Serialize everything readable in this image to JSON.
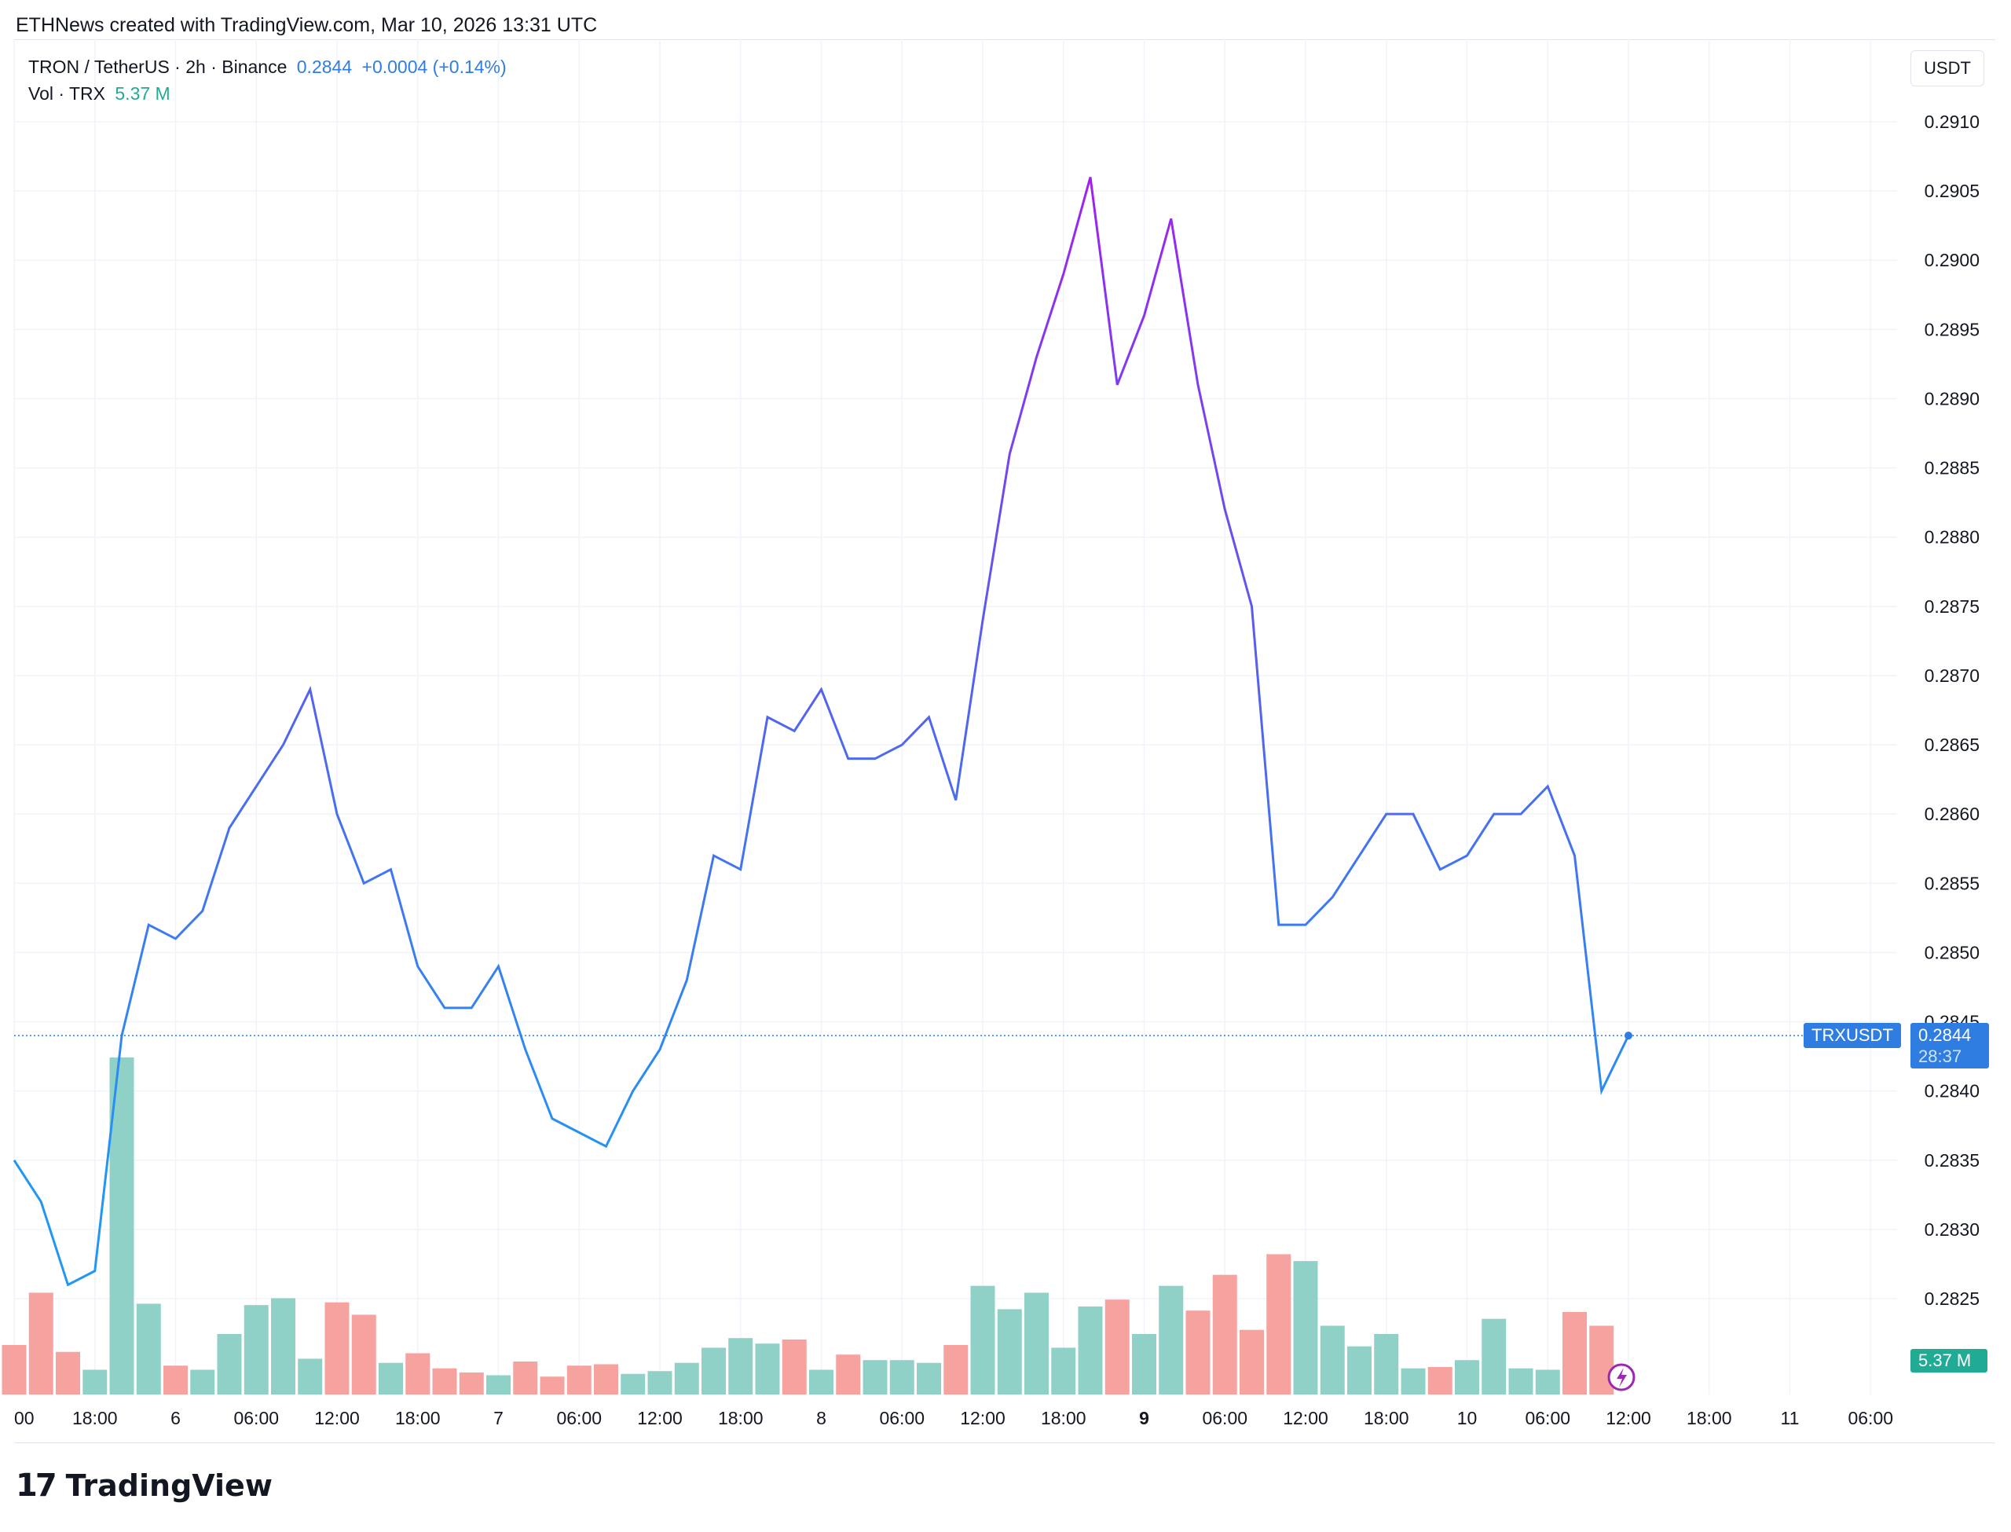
{
  "attribution": "ETHNews created with TradingView.com, Mar 10, 2026 13:31 UTC",
  "legend": {
    "symbol": "TRON / TetherUS · 2h · Binance",
    "last": "0.2844",
    "change": "+0.0004 (+0.14%)",
    "vol_label": "Vol · TRX",
    "vol_value": "5.37 M"
  },
  "currency_button": "USDT",
  "price_tag": {
    "symbol": "TRXUSDT",
    "price": "0.2844",
    "countdown": "28:37"
  },
  "volume_tag": "5.37 M",
  "brand": {
    "mark": "17",
    "name": "TradingView"
  },
  "colors": {
    "line_low": "#2196f3",
    "line_mid": "#5b5bef",
    "line_high": "#a020f0",
    "vol_up": "#8fd1c7",
    "vol_down": "#f6a3a0",
    "accent": "#2f7de1",
    "vol_tag": "#22ab94"
  },
  "chart_data": {
    "type": "line",
    "y_axis": {
      "ticks": [
        "0.2910",
        "0.2905",
        "0.2900",
        "0.2895",
        "0.2890",
        "0.2885",
        "0.2880",
        "0.2875",
        "0.2870",
        "0.2865",
        "0.2860",
        "0.2855",
        "0.2850",
        "0.2845",
        "0.2840",
        "0.2835",
        "0.2830",
        "0.2825"
      ],
      "min": 0.2822,
      "max": 0.2914
    },
    "x_axis": {
      "ticks": [
        "00",
        "18:00",
        "6",
        "06:00",
        "12:00",
        "18:00",
        "7",
        "06:00",
        "12:00",
        "18:00",
        "8",
        "06:00",
        "12:00",
        "18:00",
        "9",
        "06:00",
        "12:00",
        "18:00",
        "10",
        "06:00",
        "12:00",
        "18:00",
        "11",
        "06:00"
      ],
      "bold": [
        "9"
      ]
    },
    "series": [
      {
        "values": [
          0.2835,
          0.2832,
          0.2826,
          0.2827,
          0.2844,
          0.2852,
          0.2851,
          0.2853,
          0.2859,
          0.2862,
          0.2865,
          0.2869,
          0.286,
          0.2855,
          0.2856,
          0.2849,
          0.2846,
          0.2846,
          0.2849,
          0.2843,
          0.2838,
          0.2837,
          0.2836,
          0.284,
          0.2843,
          0.2848,
          0.2857,
          0.2856,
          0.2867,
          0.2866,
          0.2869,
          0.2864,
          0.2864,
          0.2865,
          0.2867,
          0.2861,
          0.2874,
          0.2886,
          0.2893,
          0.2899,
          0.2906,
          0.2891,
          0.2896,
          0.2903,
          0.2891,
          0.2882,
          0.2875,
          0.2852,
          0.2852,
          0.2854,
          0.2857,
          0.286,
          0.286,
          0.2856,
          0.2857,
          0.286,
          0.286,
          0.2862,
          0.2857,
          0.284,
          0.2844
        ]
      }
    ],
    "volume": [
      {
        "v": 0.36,
        "up": false
      },
      {
        "v": 0.74,
        "up": false
      },
      {
        "v": 0.31,
        "up": false
      },
      {
        "v": 0.18,
        "up": true
      },
      {
        "v": 2.45,
        "up": true
      },
      {
        "v": 0.66,
        "up": true
      },
      {
        "v": 0.21,
        "up": false
      },
      {
        "v": 0.18,
        "up": true
      },
      {
        "v": 0.44,
        "up": true
      },
      {
        "v": 0.65,
        "up": true
      },
      {
        "v": 0.7,
        "up": true
      },
      {
        "v": 0.26,
        "up": true
      },
      {
        "v": 0.67,
        "up": false
      },
      {
        "v": 0.58,
        "up": false
      },
      {
        "v": 0.23,
        "up": true
      },
      {
        "v": 0.3,
        "up": false
      },
      {
        "v": 0.19,
        "up": false
      },
      {
        "v": 0.16,
        "up": false
      },
      {
        "v": 0.14,
        "up": true
      },
      {
        "v": 0.24,
        "up": false
      },
      {
        "v": 0.13,
        "up": false
      },
      {
        "v": 0.21,
        "up": false
      },
      {
        "v": 0.22,
        "up": false
      },
      {
        "v": 0.15,
        "up": true
      },
      {
        "v": 0.17,
        "up": true
      },
      {
        "v": 0.23,
        "up": true
      },
      {
        "v": 0.34,
        "up": true
      },
      {
        "v": 0.41,
        "up": true
      },
      {
        "v": 0.37,
        "up": true
      },
      {
        "v": 0.4,
        "up": false
      },
      {
        "v": 0.18,
        "up": true
      },
      {
        "v": 0.29,
        "up": false
      },
      {
        "v": 0.25,
        "up": true
      },
      {
        "v": 0.25,
        "up": true
      },
      {
        "v": 0.23,
        "up": true
      },
      {
        "v": 0.36,
        "up": false
      },
      {
        "v": 0.79,
        "up": true
      },
      {
        "v": 0.62,
        "up": true
      },
      {
        "v": 0.74,
        "up": true
      },
      {
        "v": 0.34,
        "up": true
      },
      {
        "v": 0.64,
        "up": true
      },
      {
        "v": 0.69,
        "up": false
      },
      {
        "v": 0.44,
        "up": true
      },
      {
        "v": 0.79,
        "up": true
      },
      {
        "v": 0.61,
        "up": false
      },
      {
        "v": 0.87,
        "up": false
      },
      {
        "v": 0.47,
        "up": false
      },
      {
        "v": 1.02,
        "up": false
      },
      {
        "v": 0.97,
        "up": true
      },
      {
        "v": 0.5,
        "up": true
      },
      {
        "v": 0.35,
        "up": true
      },
      {
        "v": 0.44,
        "up": true
      },
      {
        "v": 0.19,
        "up": true
      },
      {
        "v": 0.2,
        "up": false
      },
      {
        "v": 0.25,
        "up": true
      },
      {
        "v": 0.55,
        "up": true
      },
      {
        "v": 0.19,
        "up": true
      },
      {
        "v": 0.18,
        "up": true
      },
      {
        "v": 0.6,
        "up": false
      },
      {
        "v": 0.5,
        "up": false
      }
    ],
    "current_price": 0.2844,
    "grid": true
  }
}
